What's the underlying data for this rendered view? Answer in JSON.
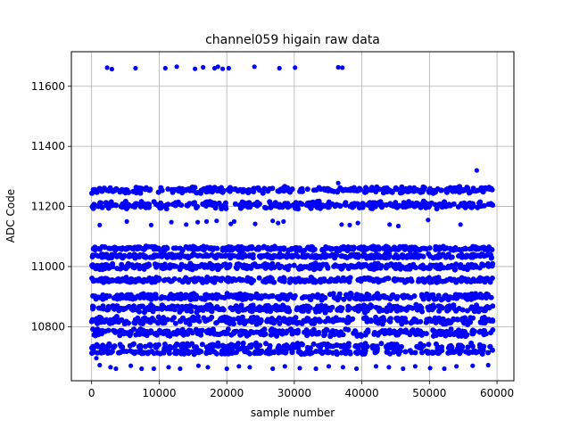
{
  "chart_data": {
    "type": "scatter",
    "title": "channel059 higain raw data",
    "xlabel": "sample number",
    "ylabel": "ADC Code",
    "xlim": [
      -3000,
      62500
    ],
    "ylim": [
      10620,
      11715
    ],
    "xticks": [
      0,
      10000,
      20000,
      30000,
      40000,
      50000,
      60000
    ],
    "yticks": [
      10800,
      11000,
      11200,
      11400,
      11600
    ],
    "grid": true,
    "marker_color": "#0000ff",
    "x_data_range": [
      0,
      59400
    ],
    "bands": [
      {
        "center": 11255,
        "spread": 12,
        "density": "dense"
      },
      {
        "center": 11205,
        "spread": 14,
        "density": "dense"
      },
      {
        "center": 11060,
        "spread": 8,
        "density": "dense"
      },
      {
        "center": 11035,
        "spread": 8,
        "density": "dense"
      },
      {
        "center": 11000,
        "spread": 12,
        "density": "dense"
      },
      {
        "center": 10955,
        "spread": 10,
        "density": "dense"
      },
      {
        "center": 10900,
        "spread": 12,
        "density": "dense"
      },
      {
        "center": 10860,
        "spread": 14,
        "density": "dense"
      },
      {
        "center": 10820,
        "spread": 14,
        "density": "dense"
      },
      {
        "center": 10780,
        "spread": 14,
        "density": "dense"
      },
      {
        "center": 10735,
        "spread": 12,
        "density": "medium"
      },
      {
        "center": 10715,
        "spread": 8,
        "density": "medium"
      }
    ],
    "outliers": [
      [
        2300,
        11662
      ],
      [
        3000,
        11657
      ],
      [
        6500,
        11660
      ],
      [
        10900,
        11660
      ],
      [
        12600,
        11665
      ],
      [
        15300,
        11658
      ],
      [
        16500,
        11663
      ],
      [
        18200,
        11660
      ],
      [
        18700,
        11665
      ],
      [
        19400,
        11658
      ],
      [
        20300,
        11660
      ],
      [
        24100,
        11665
      ],
      [
        27800,
        11660
      ],
      [
        30100,
        11662
      ],
      [
        36500,
        11663
      ],
      [
        37100,
        11662
      ],
      [
        1200,
        11138
      ],
      [
        5200,
        11150
      ],
      [
        8800,
        11138
      ],
      [
        11800,
        11148
      ],
      [
        14000,
        11140
      ],
      [
        15700,
        11148
      ],
      [
        17000,
        11150
      ],
      [
        18500,
        11152
      ],
      [
        20600,
        11142
      ],
      [
        21100,
        11150
      ],
      [
        24200,
        11142
      ],
      [
        26800,
        11152
      ],
      [
        27600,
        11145
      ],
      [
        28400,
        11150
      ],
      [
        37000,
        11140
      ],
      [
        38200,
        11138
      ],
      [
        39400,
        11145
      ],
      [
        44100,
        11140
      ],
      [
        45400,
        11135
      ],
      [
        49800,
        11155
      ],
      [
        54600,
        11140
      ],
      [
        57000,
        11320
      ],
      [
        36500,
        11278
      ],
      [
        700,
        10695
      ],
      [
        1200,
        10672
      ],
      [
        2800,
        10665
      ],
      [
        3600,
        10660
      ],
      [
        5800,
        10670
      ],
      [
        7400,
        10660
      ],
      [
        9200,
        10660
      ],
      [
        11400,
        10665
      ],
      [
        13100,
        10660
      ],
      [
        15800,
        10670
      ],
      [
        17200,
        10665
      ],
      [
        20000,
        10660
      ],
      [
        21800,
        10668
      ],
      [
        23400,
        10665
      ],
      [
        26800,
        10660
      ],
      [
        28600,
        10668
      ],
      [
        30800,
        10662
      ],
      [
        33200,
        10660
      ],
      [
        35100,
        10668
      ],
      [
        37200,
        10665
      ],
      [
        39200,
        10660
      ],
      [
        42100,
        10668
      ],
      [
        44000,
        10665
      ],
      [
        46100,
        10660
      ],
      [
        47900,
        10668
      ],
      [
        50100,
        10662
      ],
      [
        52200,
        10660
      ],
      [
        54000,
        10668
      ],
      [
        56400,
        10670
      ],
      [
        58700,
        10672
      ]
    ]
  }
}
